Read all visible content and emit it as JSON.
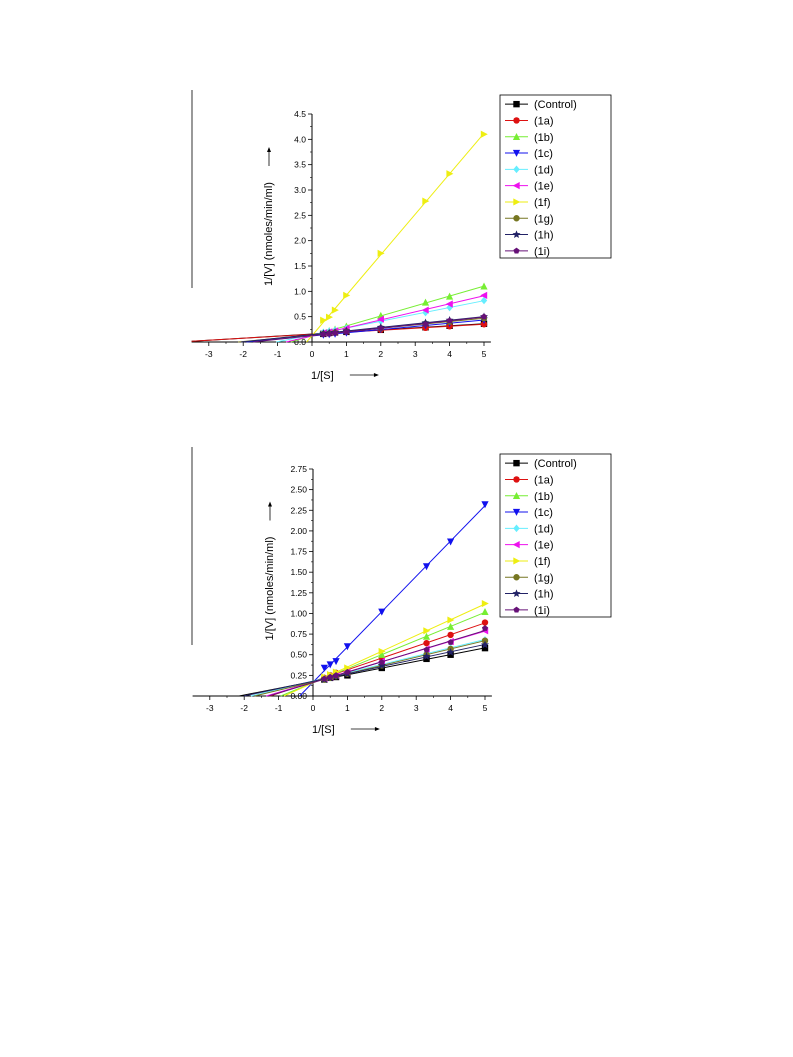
{
  "series_styles": [
    {
      "color": "#000000",
      "marker": "square"
    },
    {
      "color": "#dd1111",
      "marker": "circle"
    },
    {
      "color": "#77ee33",
      "marker": "triangle-up"
    },
    {
      "color": "#1111ee",
      "marker": "triangle-down"
    },
    {
      "color": "#66eeff",
      "marker": "diamond"
    },
    {
      "color": "#ee11ee",
      "marker": "triangle-left"
    },
    {
      "color": "#eeee11",
      "marker": "triangle-right"
    },
    {
      "color": "#777722",
      "marker": "circle"
    },
    {
      "color": "#222266",
      "marker": "star"
    },
    {
      "color": "#661177",
      "marker": "pentagon"
    }
  ],
  "chart_data": [
    {
      "type": "line",
      "xlabel": "1/[S]",
      "ylabel": "1/[V] (nmoles/min/ml)",
      "xlim": [
        -3.5,
        5.2
      ],
      "ylim": [
        0,
        4.5
      ],
      "xticks": [
        -3,
        -2,
        -1,
        0,
        1,
        2,
        3,
        4,
        5
      ],
      "yticks": [
        0.0,
        0.5,
        1.0,
        1.5,
        2.0,
        2.5,
        3.0,
        3.5,
        4.0,
        4.5
      ],
      "ytick_labels": [
        "0.0",
        "0.5",
        "1.0",
        "1.5",
        "2.0",
        "2.5",
        "3.0",
        "3.5",
        "4.0",
        "4.5"
      ],
      "x": [
        0.33,
        0.5,
        0.67,
        1,
        2,
        3.3,
        4,
        5
      ],
      "legend_position": "top-right",
      "series": [
        {
          "name": "(Control)",
          "values": [
            0.16,
            0.18,
            0.19,
            0.2,
            0.24,
            0.29,
            0.32,
            0.36
          ]
        },
        {
          "name": "(1a)",
          "values": [
            0.16,
            0.17,
            0.18,
            0.2,
            0.24,
            0.28,
            0.31,
            0.35
          ]
        },
        {
          "name": "(1b)",
          "values": [
            0.19,
            0.22,
            0.25,
            0.31,
            0.52,
            0.78,
            0.9,
            1.1
          ]
        },
        {
          "name": "(1c)",
          "values": [
            0.14,
            0.15,
            0.16,
            0.18,
            0.25,
            0.33,
            0.37,
            0.43
          ]
        },
        {
          "name": "(1d)",
          "values": [
            0.19,
            0.21,
            0.23,
            0.27,
            0.41,
            0.58,
            0.68,
            0.82
          ]
        },
        {
          "name": "(1e)",
          "values": [
            0.18,
            0.2,
            0.22,
            0.27,
            0.45,
            0.63,
            0.75,
            0.92
          ]
        },
        {
          "name": "(1f)",
          "values": [
            0.43,
            0.49,
            0.63,
            0.92,
            1.75,
            2.78,
            3.32,
            4.1
          ]
        },
        {
          "name": "(1g)",
          "values": [
            0.16,
            0.17,
            0.19,
            0.21,
            0.27,
            0.36,
            0.4,
            0.47
          ]
        },
        {
          "name": "(1h)",
          "values": [
            0.17,
            0.18,
            0.19,
            0.22,
            0.29,
            0.38,
            0.43,
            0.5
          ]
        },
        {
          "name": "(1i)",
          "values": [
            0.15,
            0.16,
            0.18,
            0.2,
            0.27,
            0.35,
            0.42,
            0.5
          ]
        }
      ]
    },
    {
      "type": "line",
      "xlabel": "1/[S]",
      "ylabel": "1/[V] (nmoles/min/ml)",
      "xlim": [
        -3.5,
        5.2
      ],
      "ylim": [
        0,
        2.75
      ],
      "xticks": [
        -3,
        -2,
        -1,
        0,
        1,
        2,
        3,
        4,
        5
      ],
      "yticks": [
        0,
        0.25,
        0.5,
        0.75,
        1.0,
        1.25,
        1.5,
        1.75,
        2.0,
        2.25,
        2.5,
        2.75
      ],
      "ytick_labels": [
        "0.00",
        "0.25",
        "0.50",
        "0.75",
        "1.00",
        "1.25",
        "1.50",
        "1.75",
        "2.00",
        "2.25",
        "2.50",
        "2.75"
      ],
      "x": [
        0.33,
        0.5,
        0.67,
        1,
        2,
        3.3,
        4,
        5
      ],
      "legend_position": "top-right",
      "series": [
        {
          "name": "(Control)",
          "values": [
            0.2,
            0.22,
            0.23,
            0.25,
            0.34,
            0.45,
            0.5,
            0.58
          ]
        },
        {
          "name": "(1a)",
          "values": [
            0.22,
            0.25,
            0.28,
            0.31,
            0.46,
            0.64,
            0.74,
            0.89
          ]
        },
        {
          "name": "(1b)",
          "values": [
            0.22,
            0.25,
            0.28,
            0.32,
            0.5,
            0.72,
            0.84,
            1.02
          ]
        },
        {
          "name": "(1c)",
          "values": [
            0.34,
            0.38,
            0.42,
            0.6,
            1.02,
            1.57,
            1.87,
            2.32
          ]
        },
        {
          "name": "(1d)",
          "values": [
            0.21,
            0.23,
            0.25,
            0.28,
            0.39,
            0.52,
            0.58,
            0.68
          ]
        },
        {
          "name": "(1e)",
          "values": [
            0.21,
            0.23,
            0.25,
            0.29,
            0.42,
            0.57,
            0.66,
            0.79
          ]
        },
        {
          "name": "(1f)",
          "values": [
            0.23,
            0.26,
            0.29,
            0.34,
            0.54,
            0.79,
            0.92,
            1.12
          ]
        },
        {
          "name": "(1g)",
          "values": [
            0.2,
            0.22,
            0.24,
            0.27,
            0.37,
            0.5,
            0.57,
            0.67
          ]
        },
        {
          "name": "(1h)",
          "values": [
            0.2,
            0.22,
            0.24,
            0.27,
            0.37,
            0.48,
            0.53,
            0.62
          ]
        },
        {
          "name": "(1i)",
          "values": [
            0.21,
            0.23,
            0.25,
            0.29,
            0.41,
            0.56,
            0.65,
            0.82
          ]
        }
      ]
    }
  ]
}
